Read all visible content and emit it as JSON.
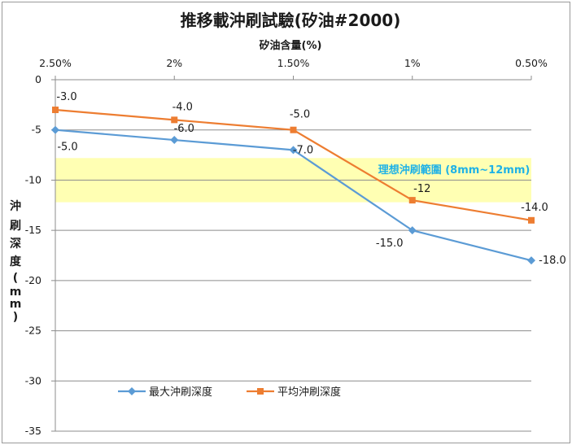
{
  "chart_data": {
    "type": "line",
    "title": "推移載沖刷試驗(矽油#2000)",
    "xlabel": "矽油含量(%)",
    "ylabel": [
      "沖",
      "刷",
      "深",
      "度",
      "(",
      "m",
      "m",
      ")"
    ],
    "categories": [
      "2.50%",
      "2%",
      "1.50%",
      "1%",
      "0.50%"
    ],
    "xaxis_position": "top",
    "ylim": [
      -35,
      0
    ],
    "yticks": [
      0,
      -5,
      -10,
      -15,
      -20,
      -25,
      -30,
      -35
    ],
    "grid": true,
    "legend_position": "bottom-left-inside",
    "series": [
      {
        "name": "最大沖刷深度",
        "color": "#5b9bd5",
        "marker": "diamond",
        "values": [
          -5.0,
          -6.0,
          -7.0,
          -15.0,
          -18.0
        ],
        "labels": [
          "-5.0",
          "-6.0",
          "-7.0",
          "-15.0",
          "-18.0"
        ]
      },
      {
        "name": "平均沖刷深度",
        "color": "#ed7d31",
        "marker": "square",
        "values": [
          -3.0,
          -4.0,
          -5.0,
          -12.0,
          -14.0
        ],
        "labels": [
          "-3.0",
          "-4.0",
          "-5.0",
          "-12",
          "-14.0"
        ]
      }
    ],
    "band": {
      "label": "理想沖刷範圍 (8mm~12mm)",
      "from": -7.8,
      "to": -12.2,
      "color": "#ffff99"
    }
  }
}
